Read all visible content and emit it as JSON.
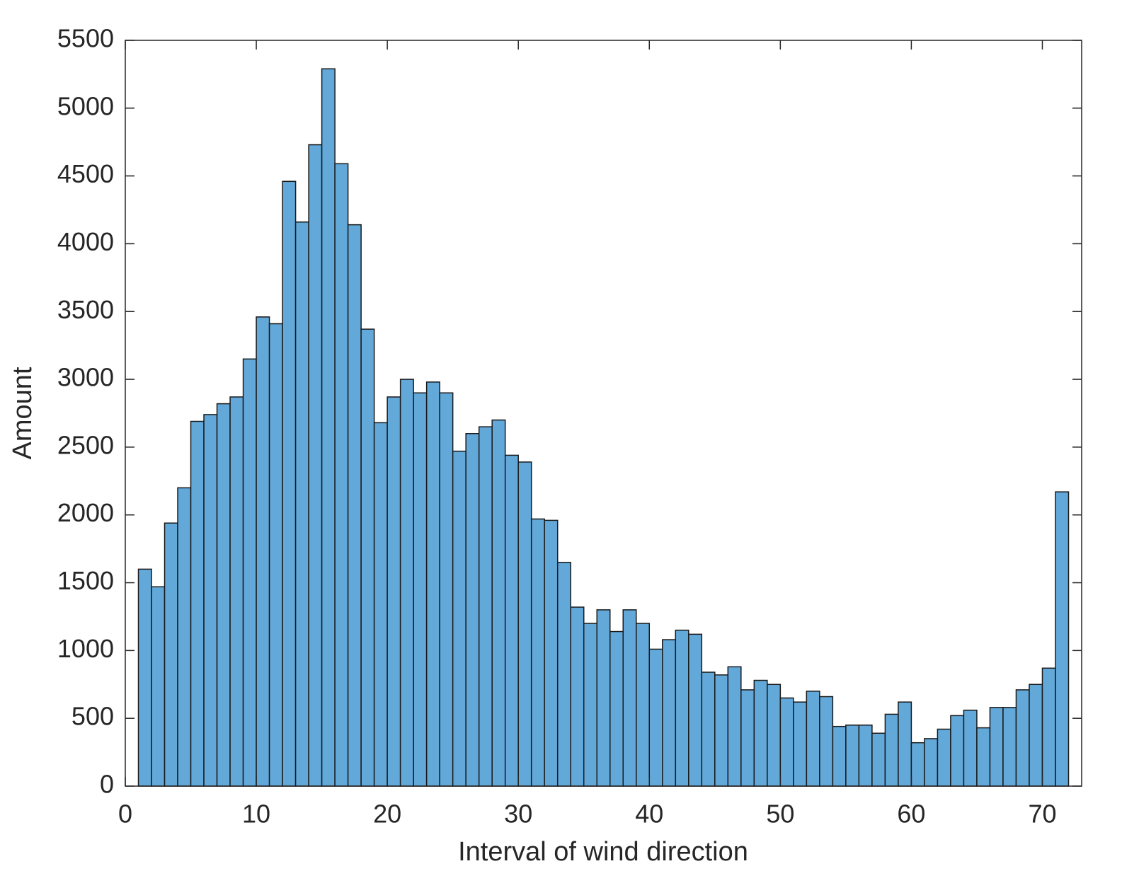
{
  "chart_data": {
    "type": "histogram",
    "xlabel": "Interval of wind direction",
    "ylabel": "Amount",
    "bins": [
      1,
      2,
      3,
      4,
      5,
      6,
      7,
      8,
      9,
      10,
      11,
      12,
      13,
      14,
      15,
      16,
      17,
      18,
      19,
      20,
      21,
      22,
      23,
      24,
      25,
      26,
      27,
      28,
      29,
      30,
      31,
      32,
      33,
      34,
      35,
      36,
      37,
      38,
      39,
      40,
      41,
      42,
      43,
      44,
      45,
      46,
      47,
      48,
      49,
      50,
      51,
      52,
      53,
      54,
      55,
      56,
      57,
      58,
      59,
      60,
      61,
      62,
      63,
      64,
      65,
      66,
      67,
      68,
      69,
      70,
      71,
      72
    ],
    "values": [
      1600,
      1470,
      1940,
      2200,
      2690,
      2740,
      2820,
      2870,
      3150,
      3460,
      3410,
      4460,
      4160,
      4730,
      5290,
      4590,
      4140,
      3370,
      2680,
      2870,
      3000,
      2900,
      2980,
      2900,
      2470,
      2600,
      2650,
      2700,
      2440,
      2390,
      1970,
      1960,
      1650,
      1320,
      1200,
      1300,
      1140,
      1300,
      1200,
      1010,
      1080,
      1150,
      1120,
      840,
      820,
      880,
      710,
      780,
      750,
      650,
      620,
      700,
      660,
      440,
      450,
      450,
      390,
      530,
      620,
      320,
      350,
      420,
      520,
      560,
      430,
      580,
      580,
      710,
      750,
      870,
      2170
    ],
    "color": "#62a8d9",
    "edgecolor": "#1a1a1a",
    "xlim": [
      0,
      73
    ],
    "ylim": [
      0,
      5500
    ],
    "xticks": [
      0,
      10,
      20,
      30,
      40,
      50,
      60,
      70
    ],
    "yticks": [
      0,
      500,
      1000,
      1500,
      2000,
      2500,
      3000,
      3500,
      4000,
      4500,
      5000,
      5500
    ]
  }
}
